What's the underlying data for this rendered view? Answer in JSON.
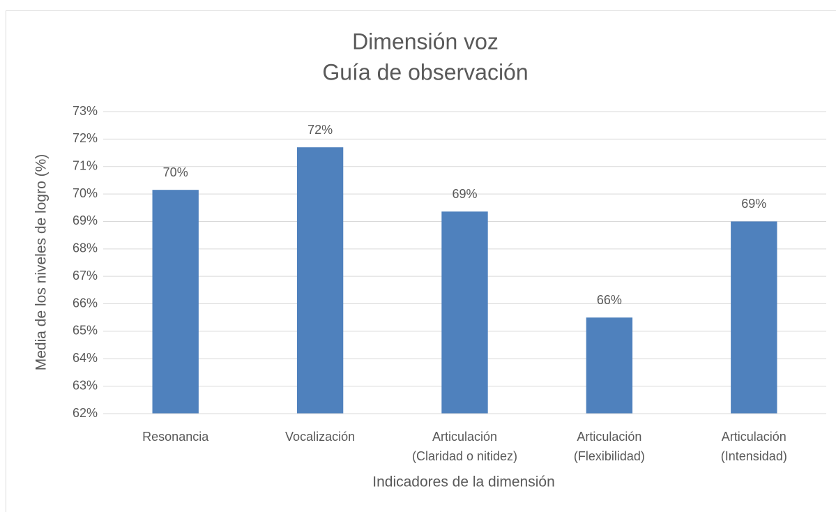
{
  "chart_data": {
    "type": "bar",
    "title": "Dimensión voz",
    "subtitle": "Guía de observación",
    "x_label": "Indicadores de la dimensión",
    "y_label": "Media de los niveles de logro (%)",
    "categories": [
      "Resonancia",
      "Vocalización",
      "Articulación\n(Claridad o nitidez)",
      "Articulación\n(Flexibilidad)",
      "Articulación\n(Intensidad)"
    ],
    "values": [
      70.15,
      71.7,
      69.36,
      65.5,
      69.0
    ],
    "value_labels": [
      "70%",
      "72%",
      "69%",
      "66%",
      "69%"
    ],
    "color": "#4f81bd",
    "ylim": [
      62,
      73
    ],
    "yticks": [
      {
        "value": 62,
        "label": "62%"
      },
      {
        "value": 63,
        "label": "63%"
      },
      {
        "value": 64,
        "label": "64%"
      },
      {
        "value": 65,
        "label": "65%"
      },
      {
        "value": 66,
        "label": "66%"
      },
      {
        "value": 67,
        "label": "67%"
      },
      {
        "value": 68,
        "label": "68%"
      },
      {
        "value": 69,
        "label": "69%"
      },
      {
        "value": 70,
        "label": "70%"
      },
      {
        "value": 71,
        "label": "71%"
      },
      {
        "value": 72,
        "label": "72%"
      },
      {
        "value": 73,
        "label": "73%"
      }
    ],
    "grid": true
  }
}
